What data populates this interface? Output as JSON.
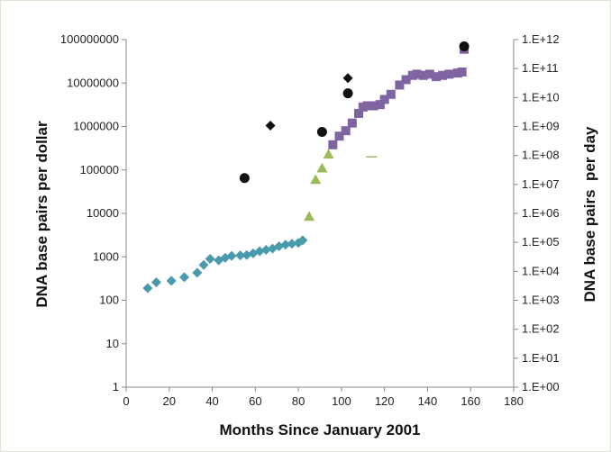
{
  "chart_data": {
    "type": "scatter",
    "title": "",
    "xlabel": "Months Since January 2001",
    "ylabel": "DNA base pairs per dollar",
    "y2label": "DNA base pairs  per day",
    "xlim": [
      0,
      180
    ],
    "ylim": [
      1,
      100000000
    ],
    "y2lim": [
      1,
      1000000000000
    ],
    "yscale": "log",
    "y2scale": "log",
    "grid": false,
    "x_ticks": [
      0,
      20,
      40,
      60,
      80,
      100,
      120,
      140,
      160,
      180
    ],
    "y_ticks": [
      1,
      10,
      100,
      1000,
      10000,
      100000,
      1000000,
      10000000,
      100000000
    ],
    "y_tick_labels": [
      "1",
      "10",
      "100",
      "1000",
      "10000",
      "100000",
      "1000000",
      "10000000",
      "100000000"
    ],
    "y2_ticks": [
      1,
      10,
      100,
      1000,
      10000,
      100000,
      1000000,
      10000000,
      100000000,
      1000000000,
      10000000000,
      100000000000,
      1000000000000
    ],
    "y2_tick_labels": [
      "1.E+00",
      "1.E+01",
      "1.E+02",
      "1.E+03",
      "1.E+04",
      "1.E+05",
      "1.E+06",
      "1.E+07",
      "1.E+08",
      "1.E+09",
      "1.E+10",
      "1.E+11",
      "1.E+12"
    ],
    "series": [
      {
        "axis": "left",
        "marker": "diamond",
        "color": "#4a9aad",
        "points": [
          [
            10,
            190
          ],
          [
            14,
            260
          ],
          [
            21,
            280
          ],
          [
            27,
            340
          ],
          [
            33,
            430
          ],
          [
            36,
            650
          ],
          [
            39,
            900
          ],
          [
            43,
            830
          ],
          [
            46,
            950
          ],
          [
            49,
            1050
          ],
          [
            53,
            1080
          ],
          [
            56,
            1100
          ],
          [
            59,
            1200
          ],
          [
            62,
            1350
          ],
          [
            65,
            1450
          ],
          [
            68,
            1550
          ],
          [
            71,
            1750
          ],
          [
            74,
            1900
          ],
          [
            77,
            2000
          ],
          [
            80,
            2100
          ],
          [
            82,
            2400
          ]
        ]
      },
      {
        "axis": "left",
        "marker": "triangle",
        "color": "#9bbb59",
        "points": [
          [
            85,
            8500
          ],
          [
            88,
            60000
          ],
          [
            91,
            110000
          ],
          [
            94,
            230000
          ]
        ]
      },
      {
        "axis": "left",
        "marker": "square",
        "color": "#8064a2",
        "points": [
          [
            96,
            380000
          ],
          [
            99,
            600000
          ],
          [
            102,
            800000
          ],
          [
            105,
            1200000
          ],
          [
            108,
            2000000
          ],
          [
            110,
            2800000
          ],
          [
            112,
            3000000
          ],
          [
            115,
            3000000
          ],
          [
            118,
            3200000
          ],
          [
            120,
            4200000
          ],
          [
            123,
            5500000
          ],
          [
            127,
            9000000
          ],
          [
            130,
            12000000
          ],
          [
            133,
            15000000
          ],
          [
            135,
            16000000
          ],
          [
            138,
            15000000
          ],
          [
            141,
            16000000
          ],
          [
            144,
            14000000
          ],
          [
            147,
            15000000
          ],
          [
            150,
            16000000
          ],
          [
            154,
            17000000
          ],
          [
            156,
            18000000
          ],
          [
            157,
            60000000
          ]
        ]
      },
      {
        "axis": "left",
        "marker": "circle",
        "color": "#111111",
        "points": [
          [
            55,
            65000
          ],
          [
            91,
            750000
          ],
          [
            103,
            5800000
          ],
          [
            157,
            70000000
          ]
        ]
      },
      {
        "axis": "left",
        "marker": "diamond",
        "color": "#111111",
        "points": [
          [
            67,
            1050000
          ],
          [
            103,
            13000000
          ],
          [
            157,
            70000000
          ]
        ]
      },
      {
        "axis": "left",
        "marker": "dash",
        "color": "#9bbb59",
        "points": [
          [
            114,
            200000
          ]
        ]
      }
    ]
  }
}
